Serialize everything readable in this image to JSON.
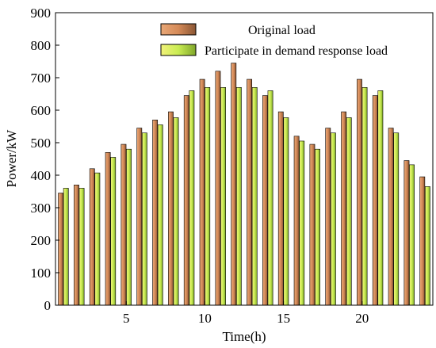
{
  "chart_data": {
    "type": "bar",
    "title": "",
    "xlabel": "Time(h)",
    "ylabel": "Power/kW",
    "ylim": [
      0,
      900
    ],
    "yticks": [
      0,
      100,
      200,
      300,
      400,
      500,
      600,
      700,
      800,
      900
    ],
    "xlim": [
      0.5,
      24.5
    ],
    "xticks": [
      5,
      10,
      15,
      20
    ],
    "grid": false,
    "legend_position": "top-right",
    "categories": [
      1,
      2,
      3,
      4,
      5,
      6,
      7,
      8,
      9,
      10,
      11,
      12,
      13,
      14,
      15,
      16,
      17,
      18,
      19,
      20,
      21,
      22,
      23,
      24
    ],
    "series": [
      {
        "name": "Original load",
        "color": "#d58a58",
        "values": [
          345,
          370,
          420,
          470,
          495,
          545,
          570,
          595,
          645,
          695,
          720,
          745,
          695,
          645,
          595,
          520,
          495,
          545,
          595,
          695,
          645,
          545,
          445,
          395
        ]
      },
      {
        "name": "Participate in demand response load",
        "color": "#c9ec52",
        "values": [
          360,
          360,
          407,
          455,
          480,
          530,
          555,
          577,
          660,
          670,
          670,
          670,
          670,
          660,
          577,
          505,
          480,
          530,
          577,
          670,
          660,
          530,
          432,
          365
        ]
      }
    ]
  }
}
